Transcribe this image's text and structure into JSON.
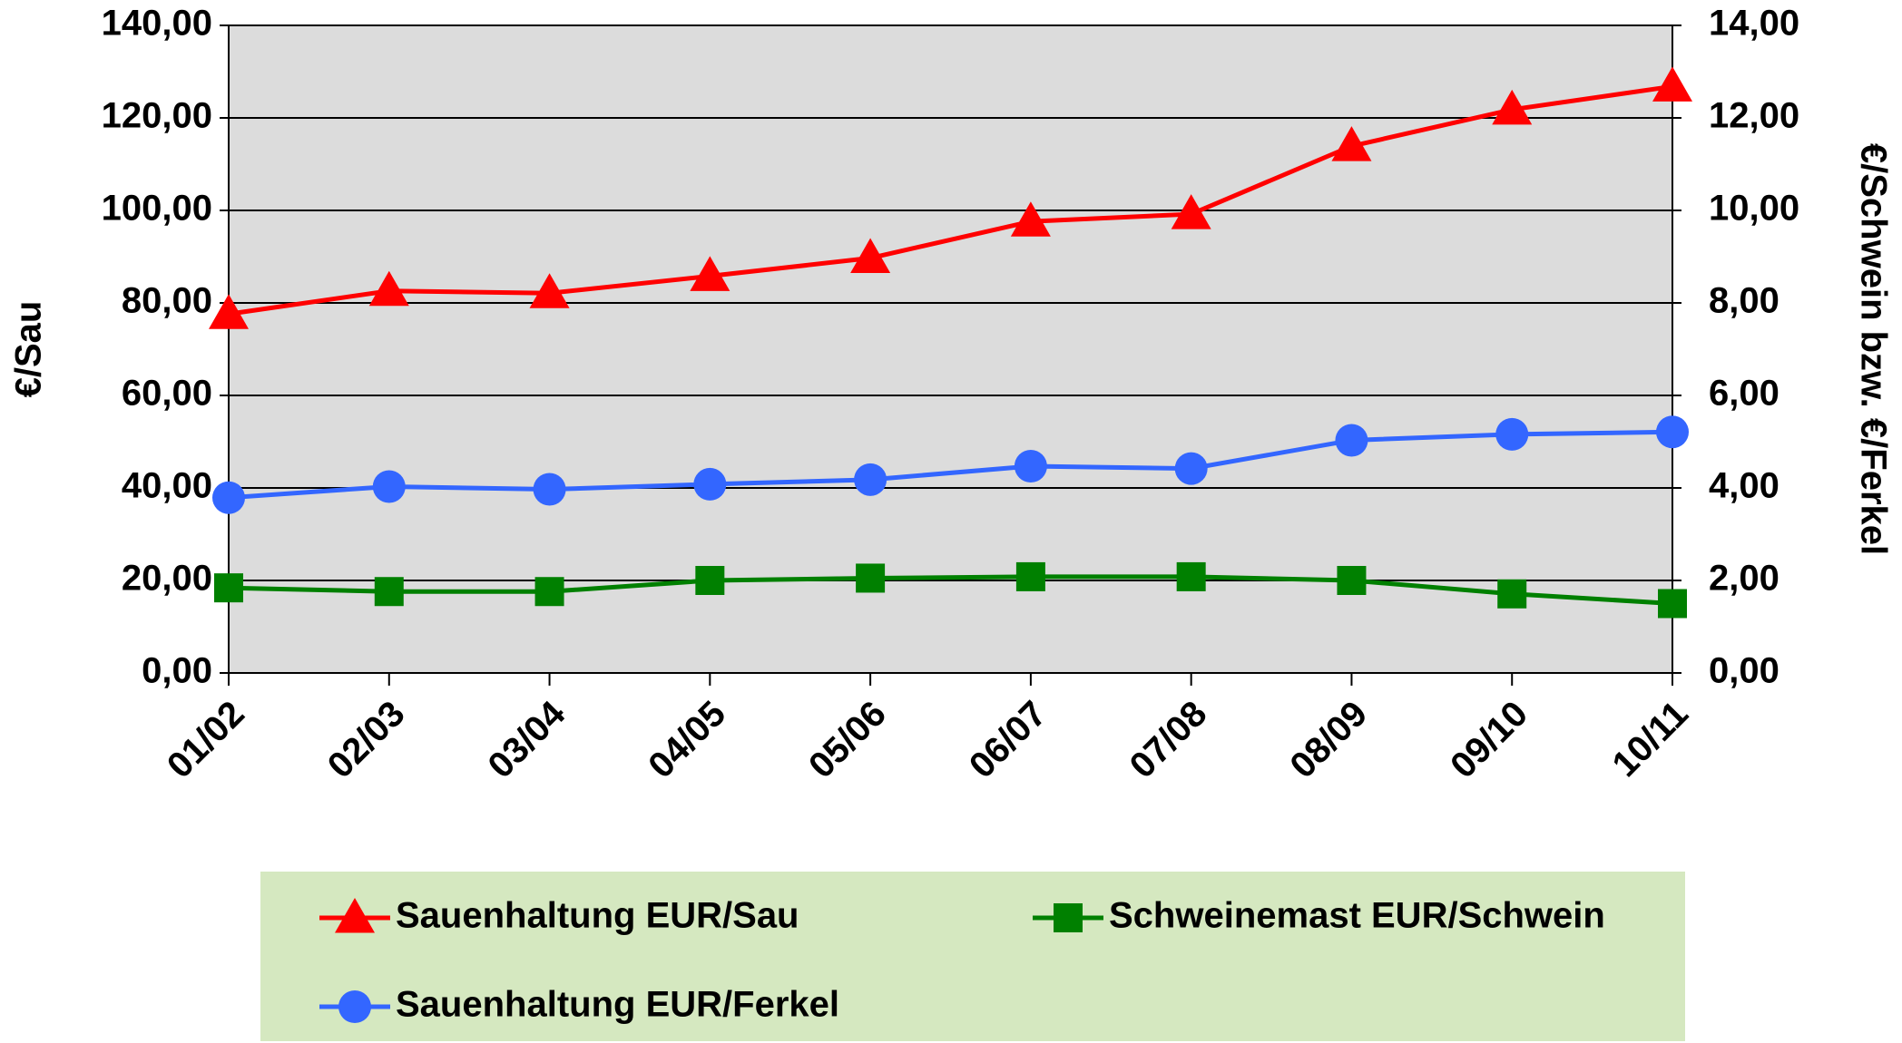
{
  "chart_data": {
    "type": "line",
    "categories": [
      "01/02",
      "02/03",
      "03/04",
      "04/05",
      "05/06",
      "06/07",
      "07/08",
      "08/09",
      "09/10",
      "10/11"
    ],
    "ylabel": "€/Sau",
    "y2label": "€/Schwein bzw. €/Ferkel",
    "ylim": [
      0,
      140
    ],
    "yticks": [
      {
        "value": 0,
        "label": "0,00"
      },
      {
        "value": 20,
        "label": "20,00"
      },
      {
        "value": 40,
        "label": "40,00"
      },
      {
        "value": 60,
        "label": "60,00"
      },
      {
        "value": 80,
        "label": "80,00"
      },
      {
        "value": 100,
        "label": "100,00"
      },
      {
        "value": 120,
        "label": "120,00"
      },
      {
        "value": 140,
        "label": "140,00"
      }
    ],
    "y2lim": [
      0,
      14
    ],
    "y2ticks": [
      {
        "value": 0,
        "label": "0,00"
      },
      {
        "value": 2,
        "label": "2,00"
      },
      {
        "value": 4,
        "label": "4,00"
      },
      {
        "value": 6,
        "label": "6,00"
      },
      {
        "value": 8,
        "label": "8,00"
      },
      {
        "value": 10,
        "label": "10,00"
      },
      {
        "value": 12,
        "label": "12,00"
      },
      {
        "value": 14,
        "label": "14,00"
      }
    ],
    "grid": true,
    "series": [
      {
        "name": "Sauenhaltung EUR/Sau",
        "color": "#ff0000",
        "marker": "triangle",
        "values": [
          77.6,
          82.6,
          82.1,
          85.8,
          89.7,
          97.6,
          99.2,
          113.9,
          121.8,
          126.8
        ]
      },
      {
        "name": "Schweinemast EUR/Schwein",
        "color": "#008000",
        "marker": "square",
        "axis": "y2",
        "values": [
          1.84,
          1.76,
          1.76,
          2.0,
          2.05,
          2.08,
          2.08,
          2.0,
          1.71,
          1.5
        ]
      },
      {
        "name": "Sauenhaltung EUR/Ferkel",
        "color": "#3366ff",
        "marker": "circle",
        "axis": "y2",
        "values": [
          3.79,
          4.03,
          3.97,
          4.08,
          4.18,
          4.47,
          4.42,
          5.03,
          5.16,
          5.21
        ]
      }
    ]
  }
}
